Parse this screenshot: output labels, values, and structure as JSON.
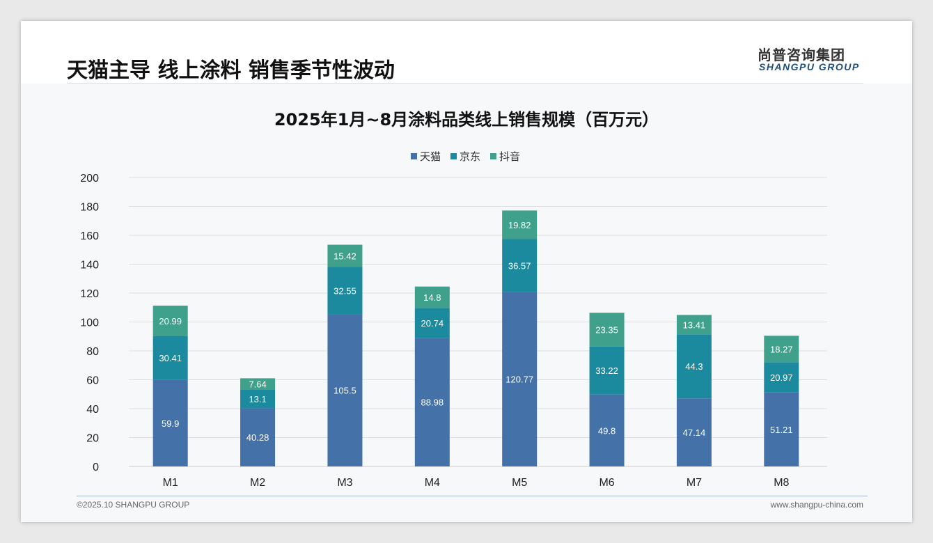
{
  "header": {
    "title": "天猫主导 线上涂料 销售季节性波动",
    "logo_cn": "尚普咨询集团",
    "logo_en": "SHANGPU GROUP"
  },
  "footer": {
    "copyright": "©2025.10 SHANGPU GROUP",
    "url": "www.shangpu-china.com"
  },
  "chart_data": {
    "type": "bar",
    "stacked": true,
    "title": "2025年1月~8月涂料品类线上销售规模（百万元）",
    "categories": [
      "M1",
      "M2",
      "M3",
      "M4",
      "M5",
      "M6",
      "M7",
      "M8"
    ],
    "series": [
      {
        "name": "天猫",
        "color": "#4472a8",
        "values": [
          59.9,
          40.28,
          105.5,
          88.98,
          120.77,
          49.8,
          47.14,
          51.21
        ]
      },
      {
        "name": "京东",
        "color": "#1b8a9e",
        "values": [
          30.41,
          13.1,
          32.55,
          20.74,
          36.57,
          33.22,
          44.3,
          20.97
        ]
      },
      {
        "name": "抖音",
        "color": "#3fa08b",
        "values": [
          20.99,
          7.64,
          15.42,
          14.8,
          19.82,
          23.35,
          13.41,
          18.27
        ]
      }
    ],
    "ylim": [
      0,
      200
    ],
    "yticks": [
      0,
      20,
      40,
      60,
      80,
      100,
      120,
      140,
      160,
      180,
      200
    ],
    "grid": true,
    "legend": "top-center",
    "xlabel": "",
    "ylabel": ""
  }
}
